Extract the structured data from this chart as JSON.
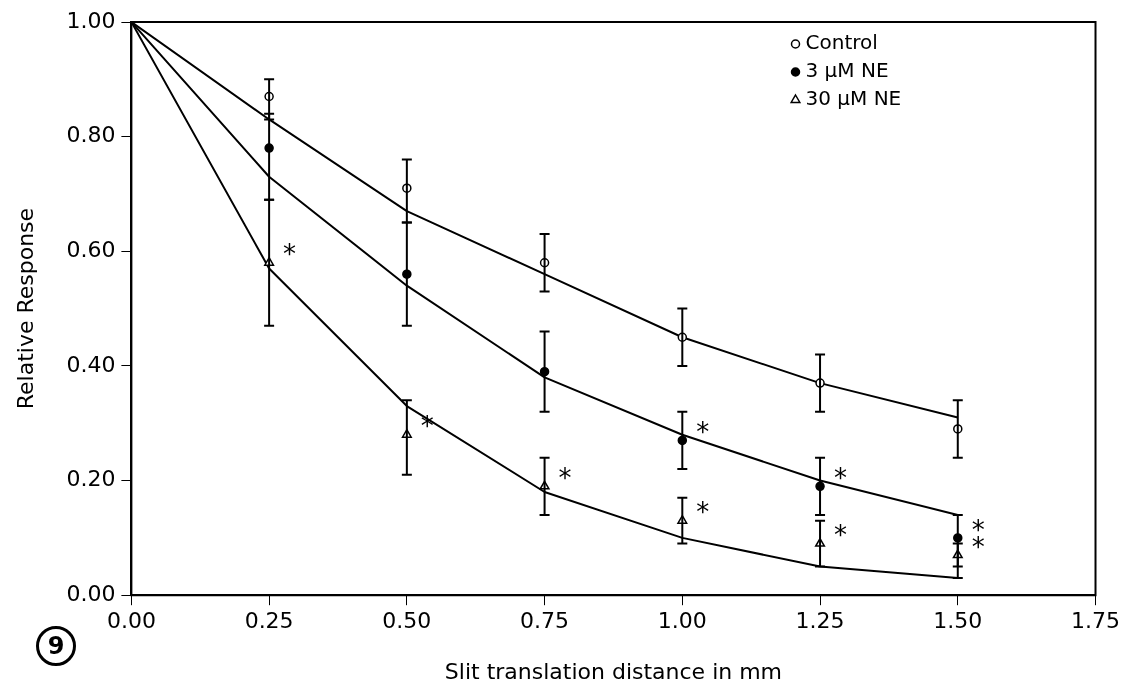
{
  "chart_data": {
    "type": "scatter",
    "xlabel": "Slit translation distance in mm",
    "ylabel": "Relative Response",
    "xlim": [
      0,
      1.75
    ],
    "ylim": [
      0,
      1
    ],
    "xticks": [
      {
        "value": 0,
        "label": "0.00"
      },
      {
        "value": 0.25,
        "label": "0.25"
      },
      {
        "value": 0.5,
        "label": "0.50"
      },
      {
        "value": 0.75,
        "label": "0.75"
      },
      {
        "value": 1,
        "label": "1.00"
      },
      {
        "value": 1.25,
        "label": "1.25"
      },
      {
        "value": 1.5,
        "label": "1.50"
      },
      {
        "value": 1.75,
        "label": "1.75"
      }
    ],
    "yticks": [
      {
        "value": 0,
        "label": "0.00"
      },
      {
        "value": 0.2,
        "label": "0.20"
      },
      {
        "value": 0.4,
        "label": "0.40"
      },
      {
        "value": 0.6,
        "label": "0.60"
      },
      {
        "value": 0.8,
        "label": "0.80"
      },
      {
        "value": 1,
        "label": "1.00"
      }
    ],
    "legend": "top right",
    "grid": false,
    "series": [
      {
        "name": "Control",
        "marker": "circle",
        "color": "#ffffff",
        "x": [
          0.25,
          0.5,
          0.75,
          1,
          1.25,
          1.5
        ],
        "values": [
          0.87,
          0.71,
          0.58,
          0.45,
          0.37,
          0.29
        ],
        "errors": [
          [
            0.83,
            0.9
          ],
          [
            0.65,
            0.76
          ],
          [
            0.53,
            0.63
          ],
          [
            0.4,
            0.5
          ],
          [
            0.32,
            0.42
          ],
          [
            0.24,
            0.34
          ]
        ]
      },
      {
        "name": "3 μM NE",
        "marker": "circle",
        "color": "#000000",
        "x": [
          0.25,
          0.5,
          0.75,
          1,
          1.25,
          1.5
        ],
        "values": [
          0.78,
          0.56,
          0.39,
          0.27,
          0.19,
          0.1
        ],
        "errors": [
          [
            0.69,
            0.84
          ],
          [
            0.47,
            0.65
          ],
          [
            0.32,
            0.46
          ],
          [
            0.22,
            0.32
          ],
          [
            0.14,
            0.24
          ],
          [
            0.05,
            0.14
          ]
        ]
      },
      {
        "name": "30 μM NE",
        "marker": "triangle",
        "color": "#ffffff",
        "x": [
          0.25,
          0.5,
          0.75,
          1,
          1.25,
          1.5
        ],
        "values": [
          0.58,
          0.28,
          0.19,
          0.13,
          0.09,
          0.07
        ],
        "errors": [
          [
            0.47,
            0.69
          ],
          [
            0.21,
            0.34
          ],
          [
            0.14,
            0.24
          ],
          [
            0.09,
            0.17
          ],
          [
            0.05,
            0.13
          ],
          [
            0.03,
            0.09
          ]
        ]
      },
      {
        "type": "line",
        "marker": "none",
        "color": "#000000",
        "x": [
          0,
          0.25,
          0.5,
          0.75,
          1,
          1.25,
          1.5
        ],
        "values": [
          1,
          0.83,
          0.67,
          0.56,
          0.45,
          0.37,
          0.31
        ]
      },
      {
        "type": "line",
        "marker": "none",
        "color": "#000000",
        "x": [
          0,
          0.25,
          0.5,
          0.75,
          1,
          1.25,
          1.5
        ],
        "values": [
          1,
          0.73,
          0.54,
          0.38,
          0.28,
          0.2,
          0.14
        ]
      },
      {
        "type": "line",
        "marker": "none",
        "color": "#000000",
        "x": [
          0,
          0.25,
          0.5,
          0.75,
          1,
          1.25,
          1.5
        ],
        "values": [
          1,
          0.57,
          0.33,
          0.18,
          0.1,
          0.05,
          0.03
        ]
      }
    ],
    "annotations": [
      {
        "text": "*",
        "x": 0.25,
        "y": 0.58
      },
      {
        "text": "*",
        "x": 0.5,
        "y": 0.28
      },
      {
        "text": "*",
        "x": 0.75,
        "y": 0.19
      },
      {
        "text": "*",
        "x": 1,
        "y": 0.27
      },
      {
        "text": "*",
        "x": 1,
        "y": 0.13
      },
      {
        "text": "*",
        "x": 1.25,
        "y": 0.19
      },
      {
        "text": "*",
        "x": 1.25,
        "y": 0.09
      },
      {
        "text": "*",
        "x": 1.5,
        "y": 0.1
      },
      {
        "text": "*",
        "x": 1.5,
        "y": 0.07
      },
      "9"
    ]
  }
}
